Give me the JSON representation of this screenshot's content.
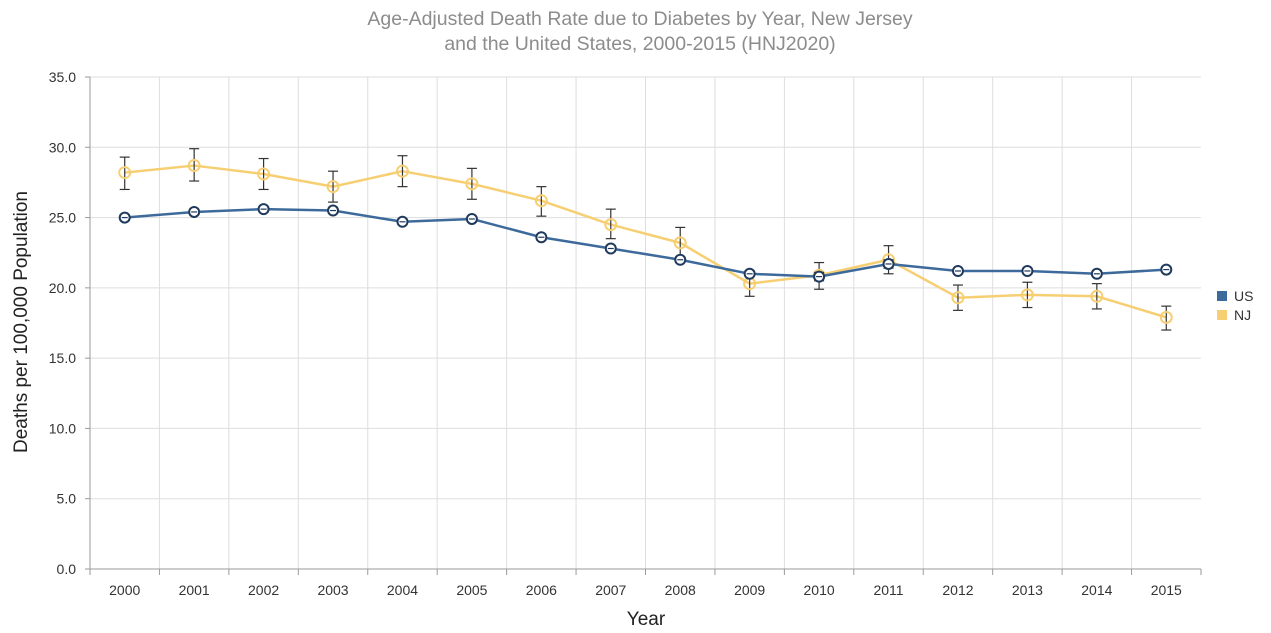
{
  "chart_data": {
    "type": "line",
    "title_lines": [
      "Age-Adjusted Death Rate due to Diabetes by Year, New Jersey",
      "and the United States, 2000-2015 (HNJ2020)"
    ],
    "xlabel": "Year",
    "ylabel": "Deaths per 100,000 Population",
    "x": [
      "2000",
      "2001",
      "2002",
      "2003",
      "2004",
      "2005",
      "2006",
      "2007",
      "2008",
      "2009",
      "2010",
      "2011",
      "2012",
      "2013",
      "2014",
      "2015"
    ],
    "ylim": [
      0,
      35
    ],
    "yticks": [
      "0.0",
      "5.0",
      "10.0",
      "15.0",
      "20.0",
      "25.0",
      "30.0",
      "35.0"
    ],
    "grid": true,
    "legend_position": "right",
    "series": [
      {
        "name": "US",
        "color": "#3d6a9b",
        "marker": "circle",
        "values": [
          25.0,
          25.4,
          25.6,
          25.5,
          24.7,
          24.9,
          23.6,
          22.8,
          22.0,
          21.0,
          20.8,
          21.7,
          21.2,
          21.2,
          21.0,
          21.3
        ],
        "error_low": [
          24.8,
          25.2,
          25.4,
          25.3,
          24.5,
          24.7,
          23.4,
          22.6,
          21.8,
          20.8,
          20.5,
          21.4,
          21.0,
          21.0,
          20.8,
          21.1
        ],
        "error_high": [
          25.2,
          25.6,
          25.8,
          25.7,
          24.9,
          25.1,
          23.8,
          23.0,
          22.2,
          21.2,
          21.1,
          22.0,
          21.4,
          21.4,
          21.2,
          21.5
        ]
      },
      {
        "name": "NJ",
        "color": "#f7cf73",
        "marker": "circle-open",
        "values": [
          28.2,
          28.7,
          28.1,
          27.2,
          28.3,
          27.4,
          26.2,
          24.5,
          23.2,
          20.3,
          20.9,
          22.0,
          19.3,
          19.5,
          19.4,
          17.9
        ],
        "error_low": [
          27.0,
          27.6,
          27.0,
          26.1,
          27.2,
          26.3,
          25.1,
          23.5,
          22.1,
          19.4,
          19.9,
          21.0,
          18.4,
          18.6,
          18.5,
          17.0
        ],
        "error_high": [
          29.3,
          29.9,
          29.2,
          28.3,
          29.4,
          28.5,
          27.2,
          25.6,
          24.3,
          21.2,
          21.8,
          23.0,
          20.2,
          20.4,
          20.3,
          18.7
        ]
      }
    ]
  }
}
